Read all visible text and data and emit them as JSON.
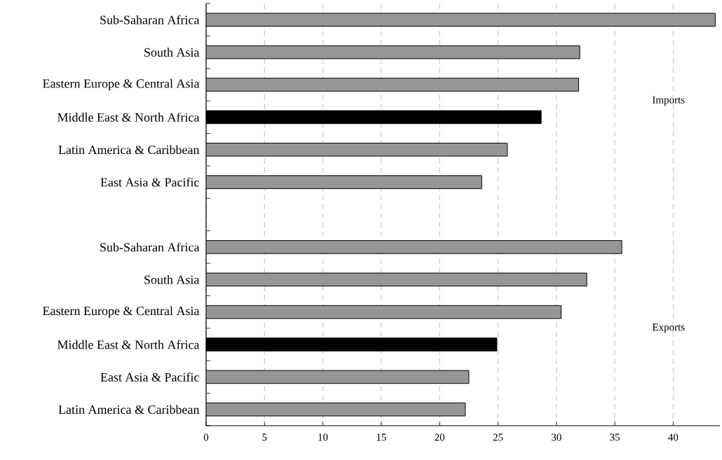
{
  "chart_data": {
    "type": "bar",
    "orientation": "horizontal",
    "categories": [
      "Sub-Saharan Africa",
      "South Asia",
      "Eastern Europe & Central Asia",
      "Middle East & North Africa",
      "Latin America & Caribbean",
      "East Asia & Pacific",
      null,
      "Sub-Saharan Africa",
      "South Asia",
      "Eastern Europe & Central Asia",
      "Middle East & North Africa",
      "East Asia & Pacific",
      "Latin America & Caribbean"
    ],
    "values": [
      43.6,
      32.0,
      31.9,
      28.7,
      25.8,
      23.6,
      null,
      35.6,
      32.6,
      30.4,
      24.9,
      22.5,
      22.2
    ],
    "colors": [
      "#969696",
      "#969696",
      "#969696",
      "#000000",
      "#969696",
      "#969696",
      null,
      "#969696",
      "#969696",
      "#969696",
      "#000000",
      "#969696",
      "#969696"
    ],
    "xlim": [
      0,
      44
    ],
    "xticks": [
      0,
      5,
      10,
      15,
      20,
      25,
      30,
      35,
      40
    ],
    "grid": "x",
    "annotations": [
      "Imports",
      "Exports"
    ]
  }
}
